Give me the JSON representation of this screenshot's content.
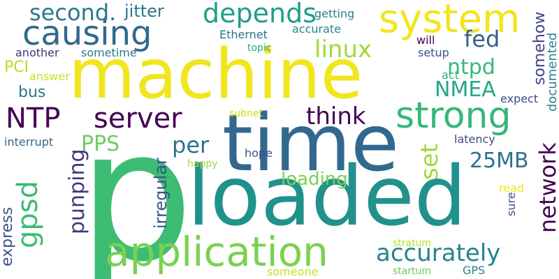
{
  "words": [
    {
      "text": "machine",
      "color": "#f1e51d"
    },
    {
      "text": "p",
      "color": "#3dbc74"
    },
    {
      "text": "loaded",
      "color": "#21918c"
    },
    {
      "text": "time",
      "color": "#31688e"
    },
    {
      "text": "application",
      "color": "#7ad151"
    },
    {
      "text": "system",
      "color": "#f1e51d"
    },
    {
      "text": "causing",
      "color": "#31688e"
    },
    {
      "text": "strong",
      "color": "#35b779"
    },
    {
      "text": "server",
      "color": "#440154"
    },
    {
      "text": "NTP",
      "color": "#440154"
    },
    {
      "text": "gpsd",
      "color": "#3dbc74"
    },
    {
      "text": "second.",
      "color": "#2a788e"
    },
    {
      "text": "depends",
      "color": "#1f9e89"
    },
    {
      "text": "jitter",
      "color": "#2a788e"
    },
    {
      "text": "linux",
      "color": "#a0da39"
    },
    {
      "text": "fed",
      "color": "#365c8d"
    },
    {
      "text": "ntpd",
      "color": "#35b779"
    },
    {
      "text": "NMEA",
      "color": "#22a884"
    },
    {
      "text": "think",
      "color": "#440154"
    },
    {
      "text": "network",
      "color": "#440154"
    },
    {
      "text": "accurately",
      "color": "#26828e"
    },
    {
      "text": "set",
      "color": "#a0da39"
    },
    {
      "text": "25MB",
      "color": "#2c728e"
    },
    {
      "text": "per",
      "color": "#2c728e"
    },
    {
      "text": "PPS",
      "color": "#6ccd5a"
    },
    {
      "text": "punping",
      "color": "#46327e"
    },
    {
      "text": "irregular",
      "color": "#3b528b"
    },
    {
      "text": "loading",
      "color": "#7ad151"
    },
    {
      "text": "somehow",
      "color": "#414487"
    },
    {
      "text": "documented",
      "color": "#26828e"
    },
    {
      "text": "expect",
      "color": "#3e4a89"
    },
    {
      "text": "express",
      "color": "#3b528b"
    },
    {
      "text": "PCI",
      "color": "#b5de2b"
    },
    {
      "text": "bus",
      "color": "#2a788e"
    },
    {
      "text": "answer",
      "color": "#c8e020"
    },
    {
      "text": "another",
      "color": "#46327e"
    },
    {
      "text": "sometime",
      "color": "#2a788e"
    },
    {
      "text": "Ethernet",
      "color": "#2c728e"
    },
    {
      "text": "getting",
      "color": "#27808e"
    },
    {
      "text": "accurate",
      "color": "#26828e"
    },
    {
      "text": "topic",
      "color": "#22a884"
    },
    {
      "text": "will",
      "color": "#440154"
    },
    {
      "text": "setup",
      "color": "#3b528b"
    },
    {
      "text": "act",
      "color": "#2db27d"
    },
    {
      "text": "subnet",
      "color": "#c8e020"
    },
    {
      "text": "interrupt",
      "color": "#31688e"
    },
    {
      "text": "latency",
      "color": "#3e4a89"
    },
    {
      "text": "hope",
      "color": "#3b528b"
    },
    {
      "text": "happy",
      "color": "#a0da39"
    },
    {
      "text": "read",
      "color": "#f1e51d"
    },
    {
      "text": "sure",
      "color": "#3b528b"
    },
    {
      "text": "stratum",
      "color": "#b5de2b"
    },
    {
      "text": "someone",
      "color": "#c8e020"
    },
    {
      "text": "startum",
      "color": "#6ccd5a"
    },
    {
      "text": "GPS",
      "color": "#26828e"
    }
  ]
}
